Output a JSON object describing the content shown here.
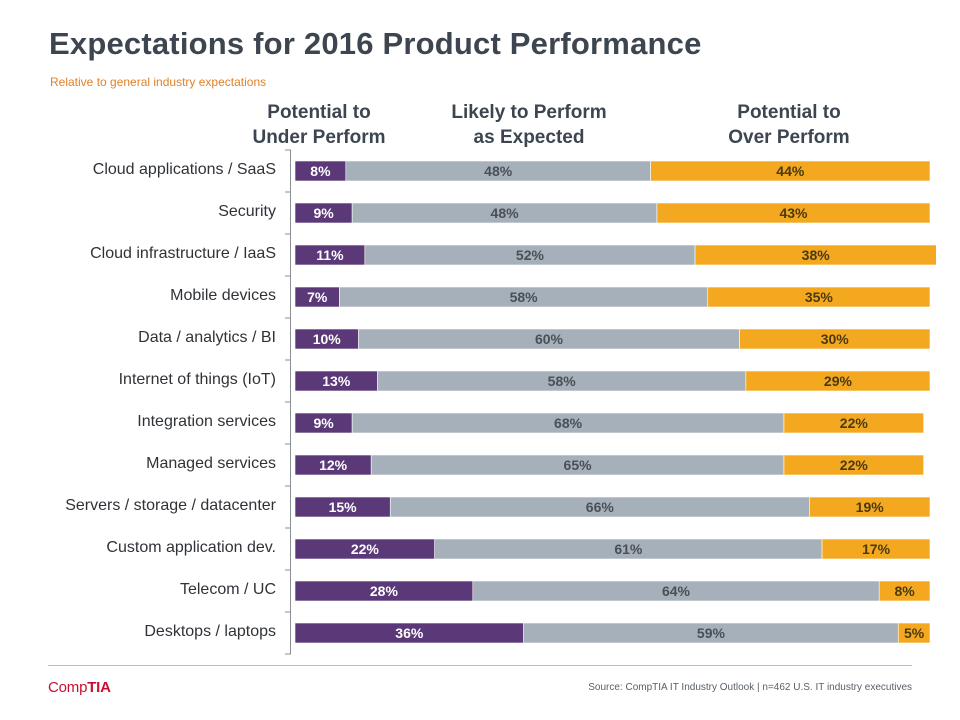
{
  "header": {
    "title": "Expectations for 2016 Product Performance",
    "subtitle": "Relative to general industry expectations"
  },
  "column_headers": {
    "under": [
      "Potential to",
      "Under Perform"
    ],
    "expected": [
      "Likely to Perform",
      "as Expected"
    ],
    "over": [
      "Potential to",
      "Over Perform"
    ]
  },
  "colors": {
    "under": "#5b3878",
    "expected": "#a6b0ba",
    "over": "#f3a820",
    "under_text": "#ffffff",
    "expected_text": "#4a4f56",
    "over_text": "#4a3a10"
  },
  "chart_data": {
    "type": "bar",
    "orientation": "horizontal",
    "stacked": true,
    "title": "Expectations for 2016 Product Performance",
    "subtitle": "Relative to general industry expectations",
    "categories": [
      "Cloud applications / SaaS",
      "Security",
      "Cloud infrastructure / IaaS",
      "Mobile devices",
      "Data / analytics / BI",
      "Internet of things (IoT)",
      "Integration services",
      "Managed services",
      "Servers / storage / datacenter",
      "Custom application dev.",
      "Telecom / UC",
      "Desktops / laptops"
    ],
    "series": [
      {
        "name": "Potential to Under Perform",
        "key": "under",
        "values": [
          8,
          9,
          11,
          7,
          10,
          13,
          9,
          12,
          15,
          22,
          28,
          36
        ]
      },
      {
        "name": "Likely to Perform as Expected",
        "key": "expected",
        "values": [
          48,
          48,
          52,
          58,
          60,
          58,
          68,
          65,
          66,
          61,
          64,
          59
        ]
      },
      {
        "name": "Potential to Over Perform",
        "key": "over",
        "values": [
          44,
          43,
          38,
          35,
          30,
          29,
          22,
          22,
          19,
          17,
          8,
          5
        ]
      }
    ],
    "value_suffix": "%",
    "xlim": [
      0,
      100
    ]
  },
  "footer": {
    "logo_prefix": "Comp",
    "logo_suffix": "TIA",
    "source": "Source: CompTIA IT Industry Outlook | n=462 U.S. IT industry executives"
  }
}
